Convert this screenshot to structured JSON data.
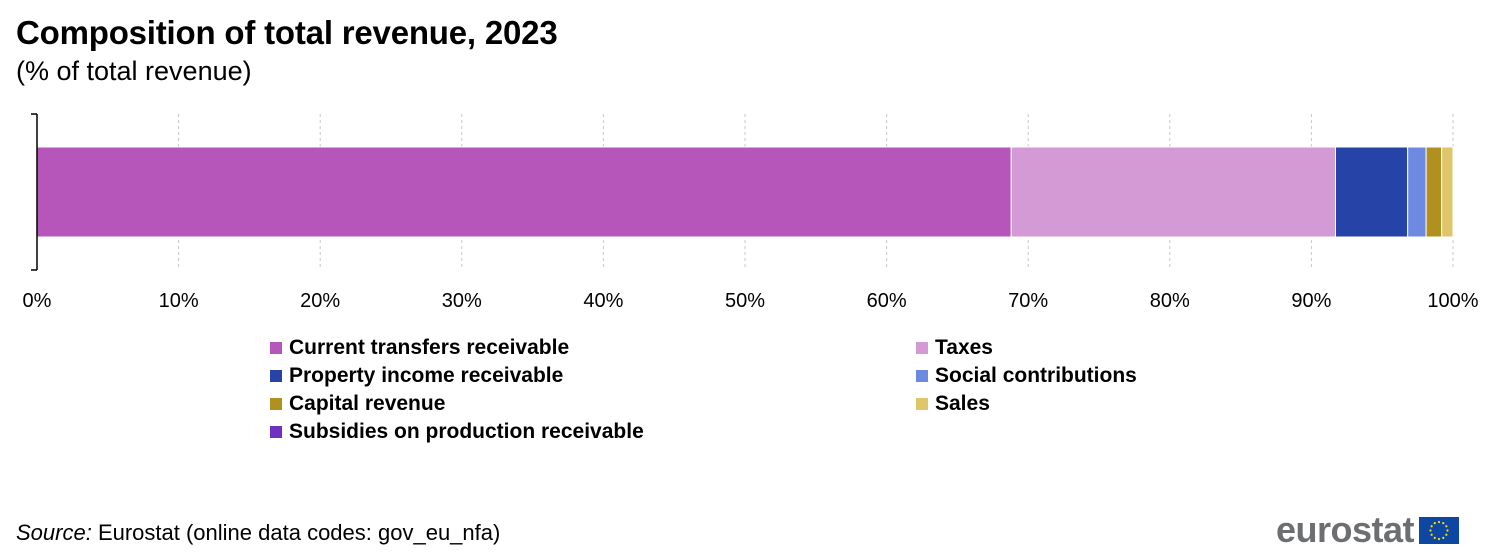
{
  "title": "Composition of total revenue, 2023",
  "subtitle": "(% of total revenue)",
  "chart_data": {
    "type": "bar",
    "orientation": "horizontal",
    "stacked": true,
    "title": "Composition of total revenue, 2023",
    "subtitle": "(% of total revenue)",
    "xlim": [
      0,
      100
    ],
    "x_ticks": [
      "0%",
      "10%",
      "20%",
      "30%",
      "40%",
      "50%",
      "60%",
      "70%",
      "80%",
      "90%",
      "100%"
    ],
    "grid": "vertical dashed",
    "legend_position": "bottom",
    "series": [
      {
        "name": "Current transfers receivable",
        "value": 68.8,
        "color": "#b656bb"
      },
      {
        "name": "Taxes",
        "value": 22.9,
        "color": "#d49ad6"
      },
      {
        "name": "Property income receivable",
        "value": 5.1,
        "color": "#2644a7"
      },
      {
        "name": "Social contributions",
        "value": 1.3,
        "color": "#6d8ae0"
      },
      {
        "name": "Capital revenue",
        "value": 1.1,
        "color": "#b09120"
      },
      {
        "name": "Sales",
        "value": 0.8,
        "color": "#e0c66a"
      },
      {
        "name": "Subsidies on production receivable",
        "value": 0.0,
        "color": "#7030c0"
      }
    ]
  },
  "legend_items": [
    {
      "label": "Current transfers receivable",
      "color": "#b656bb"
    },
    {
      "label": "Taxes",
      "color": "#d49ad6"
    },
    {
      "label": "Property income receivable",
      "color": "#2644a7"
    },
    {
      "label": "Social contributions",
      "color": "#6d8ae0"
    },
    {
      "label": "Capital revenue",
      "color": "#b09120"
    },
    {
      "label": "Sales",
      "color": "#e0c66a"
    },
    {
      "label": "Subsidies on production receivable",
      "color": "#7030c0"
    }
  ],
  "source": {
    "prefix": "Source:",
    "text": " Eurostat (online data codes: gov_eu_nfa)"
  },
  "logo": {
    "text": "eurostat",
    "flag_color": "#0e47a1",
    "star_color": "#ffdd00"
  }
}
